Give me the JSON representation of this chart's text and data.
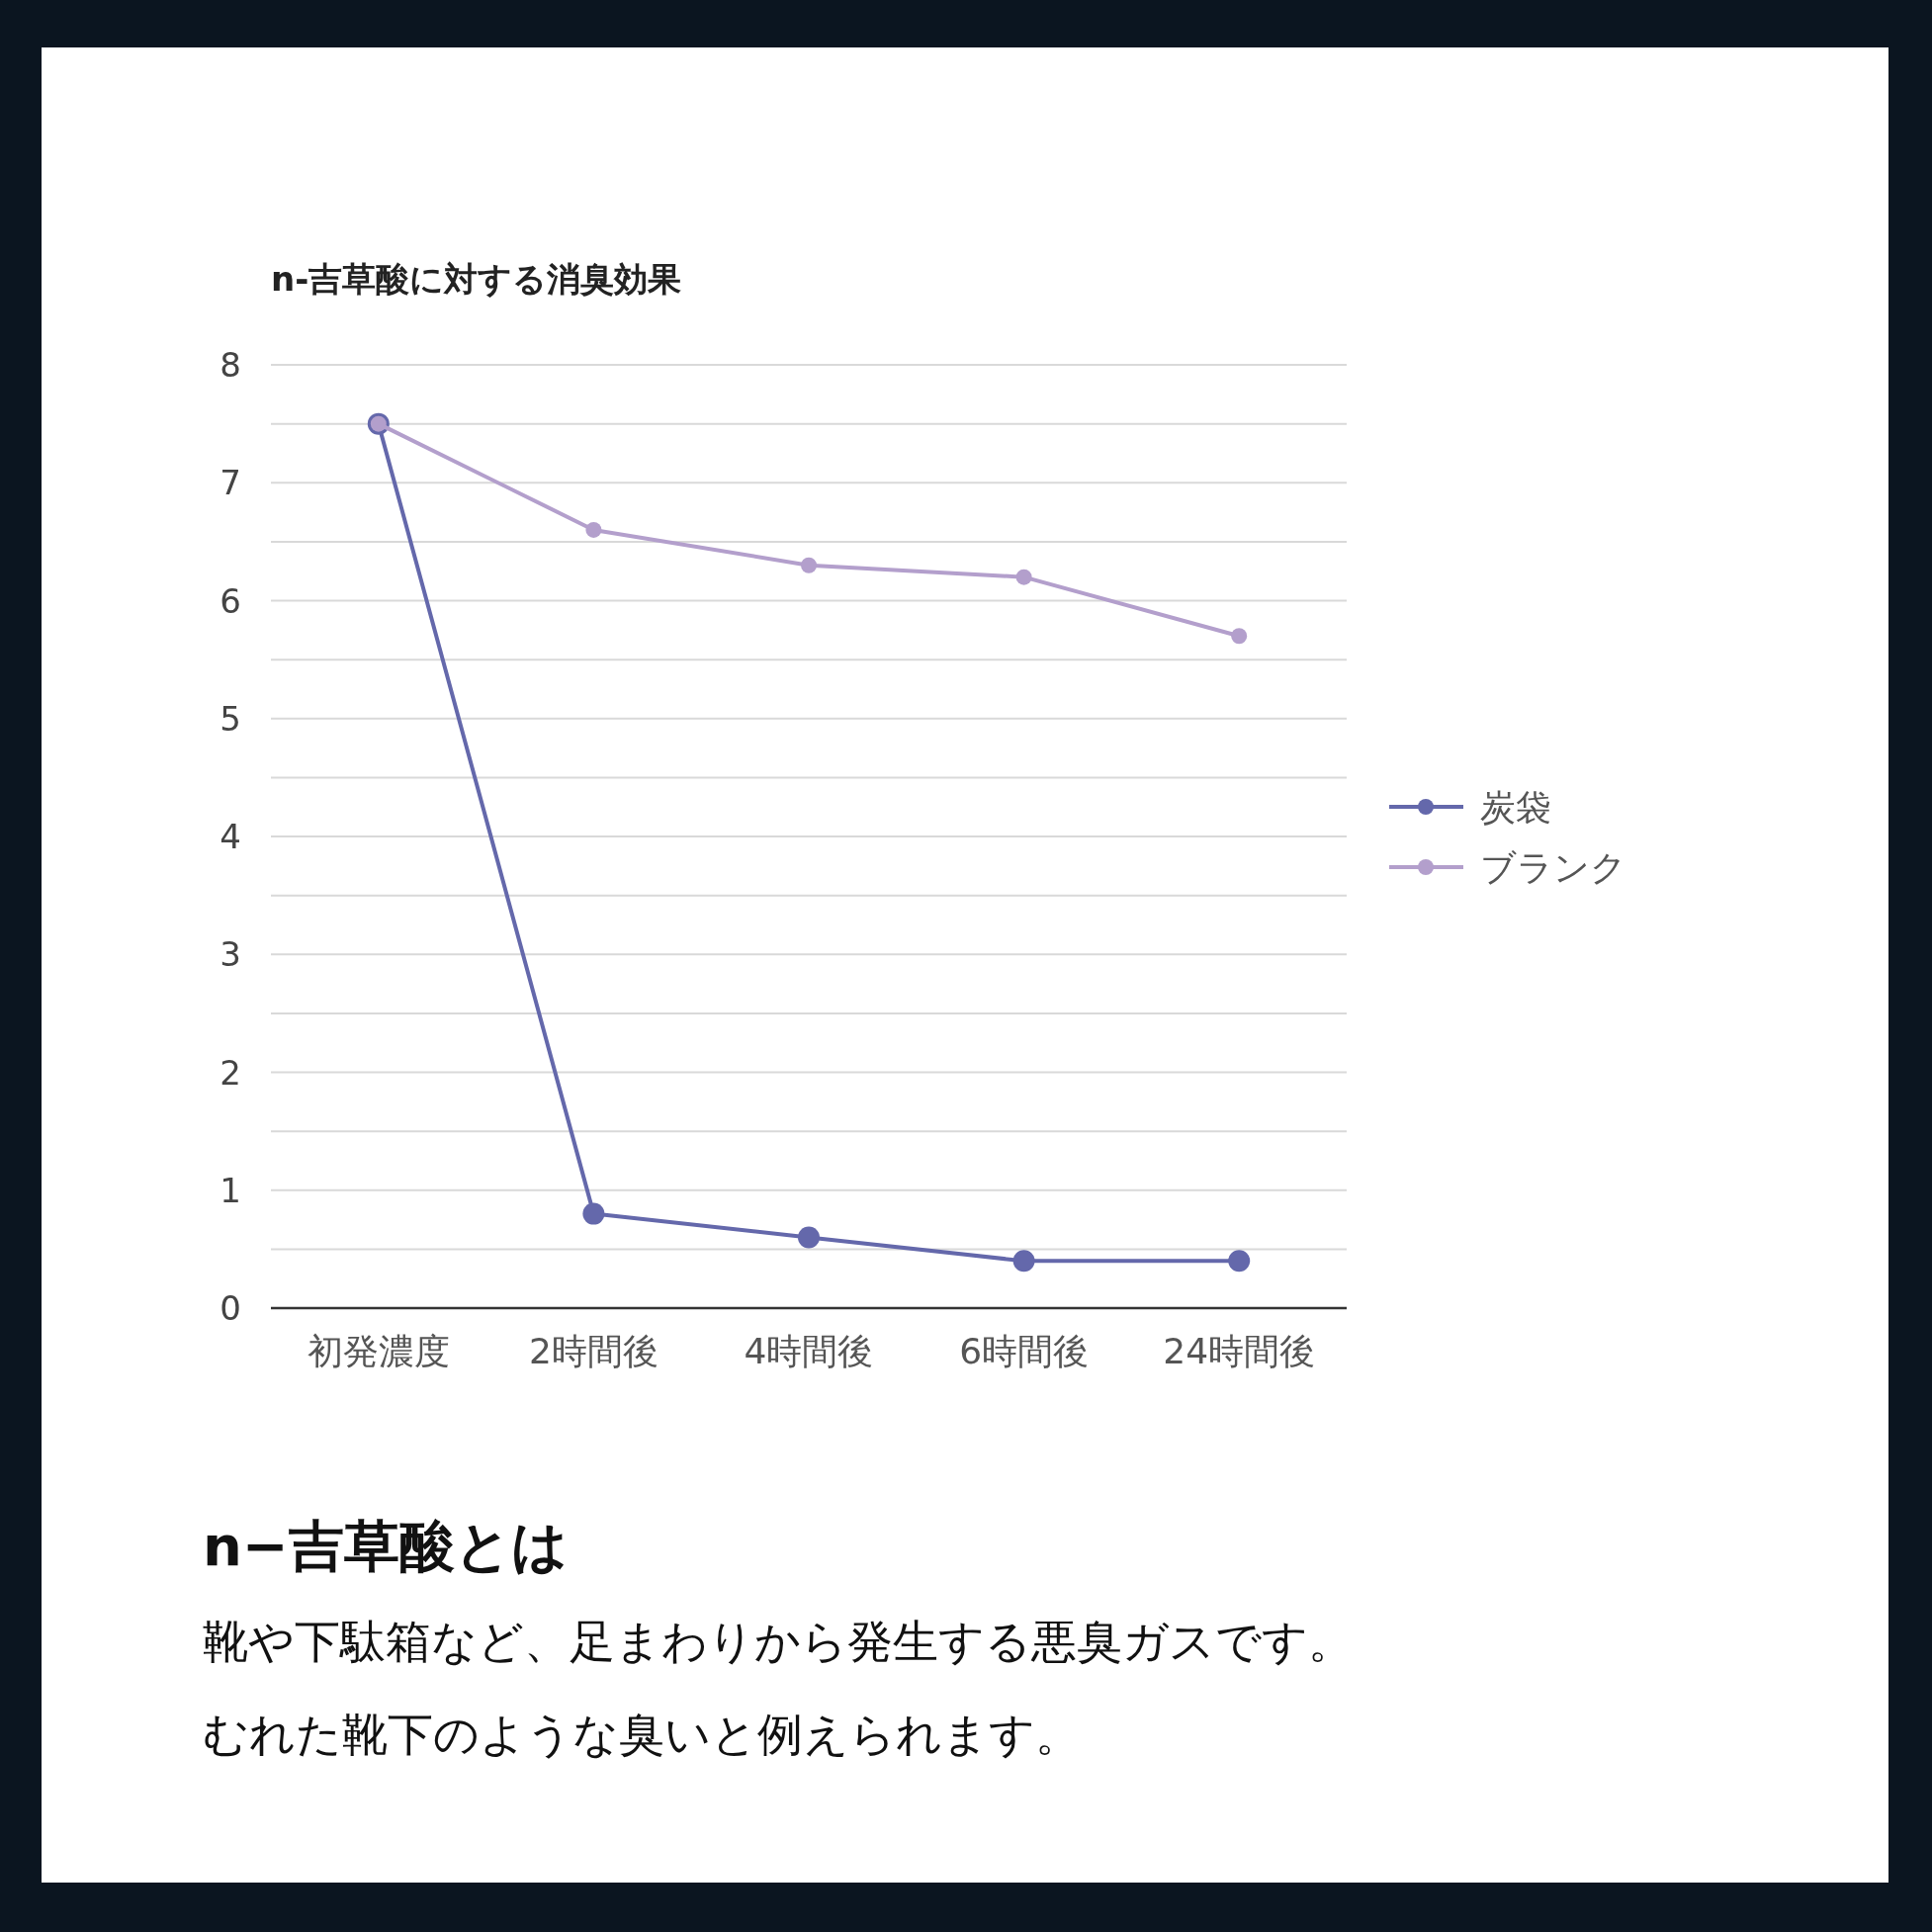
{
  "chart_data": {
    "type": "line",
    "title": "n-吉草酸に対する消臭効果",
    "categories": [
      "初発濃度",
      "2時間後",
      "4時間後",
      "6時間後",
      "24時間後"
    ],
    "series": [
      {
        "name": "炭袋",
        "color": "#6468ab",
        "values": [
          7.5,
          0.8,
          0.6,
          0.4,
          0.4
        ]
      },
      {
        "name": "ブランク",
        "color": "#b39fcc",
        "values": [
          7.5,
          6.6,
          6.3,
          6.2,
          5.7
        ]
      }
    ],
    "ylim": [
      0,
      8
    ],
    "yticks": [
      0,
      {
        "value": 0.5,
        "label": null
      },
      1,
      {
        "value": 1.5,
        "label": null
      },
      2,
      {
        "value": 2.5,
        "label": null
      },
      3,
      {
        "value": 3.5,
        "label": null
      },
      4,
      {
        "value": 4.5,
        "label": null
      },
      5,
      {
        "value": 5.5,
        "label": null
      },
      6,
      {
        "value": 6.5,
        "label": null
      },
      7,
      {
        "value": 7.5,
        "label": null
      },
      8
    ],
    "grid": "y",
    "legend": "right",
    "marker": "circle",
    "line_style": "solid",
    "annotations": [
      "n−吉草酸とは",
      "靴や下駄箱など、足まわりから発生する悪臭ガスです。",
      "むれた靴下のような臭いと例えられます。"
    ]
  }
}
